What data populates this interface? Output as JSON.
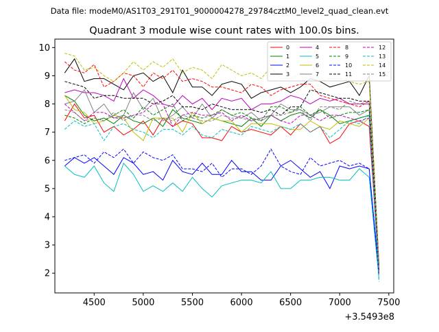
{
  "figure": {
    "suptitle": "Data file: modeM0/AS1T03_291T01_9000004278_29784cztM0_level2_quad_clean.evt"
  },
  "chart_data": {
    "type": "line",
    "title": "Quadrant 3 module wise count rates with 100.0s bins.",
    "xlabel": "",
    "ylabel": "",
    "x_offset_text": "+3.5493e8",
    "xlim": [
      4100,
      7550
    ],
    "ylim": [
      1.3,
      10.3
    ],
    "x_ticks": [
      4500,
      5000,
      5500,
      6000,
      6500,
      7000,
      7500
    ],
    "y_ticks": [
      2,
      3,
      4,
      5,
      6,
      7,
      8,
      9,
      10
    ],
    "grid": false,
    "legend_position": "top-right",
    "x": [
      4200,
      4300,
      4400,
      4500,
      4600,
      4700,
      4800,
      4900,
      5000,
      5100,
      5200,
      5300,
      5400,
      5500,
      5600,
      5700,
      5800,
      5900,
      6000,
      6100,
      6200,
      6300,
      6400,
      6500,
      6600,
      6700,
      6800,
      6900,
      7000,
      7100,
      7200,
      7300,
      7400
    ],
    "series": [
      {
        "name": "0",
        "color": "#ff0000",
        "dash": "solid",
        "values": [
          7.4,
          8.0,
          7.5,
          7.6,
          7.0,
          7.2,
          6.9,
          7.1,
          7.4,
          6.9,
          7.5,
          7.2,
          7.4,
          7.3,
          6.8,
          6.8,
          6.7,
          7.2,
          7.0,
          7.1,
          7.0,
          6.9,
          7.2,
          6.9,
          7.3,
          7.0,
          7.2,
          6.6,
          6.8,
          7.3,
          7.4,
          7.2,
          2.1
        ]
      },
      {
        "name": "1",
        "color": "#008000",
        "dash": "solid",
        "values": [
          8.3,
          8.1,
          7.6,
          7.4,
          7.5,
          7.3,
          7.6,
          7.4,
          7.3,
          7.5,
          7.2,
          7.8,
          7.5,
          7.4,
          7.3,
          7.5,
          7.4,
          7.3,
          7.2,
          7.5,
          7.2,
          7.6,
          7.4,
          7.6,
          7.7,
          7.5,
          7.8,
          7.6,
          7.3,
          7.4,
          7.5,
          7.6,
          2.1
        ]
      },
      {
        "name": "2",
        "color": "#0000ff",
        "dash": "solid",
        "values": [
          5.8,
          6.1,
          5.9,
          6.1,
          5.8,
          5.5,
          6.1,
          5.9,
          5.5,
          5.6,
          5.3,
          6.0,
          5.6,
          5.5,
          5.9,
          5.5,
          5.5,
          6.0,
          5.6,
          5.6,
          5.3,
          5.3,
          5.8,
          6.0,
          5.7,
          5.4,
          5.6,
          5.0,
          5.8,
          5.7,
          5.8,
          5.7,
          2.0
        ]
      },
      {
        "name": "3",
        "color": "#000000",
        "dash": "solid",
        "values": [
          9.1,
          9.6,
          8.8,
          8.9,
          8.9,
          8.7,
          8.5,
          9.0,
          9.1,
          8.8,
          9.0,
          8.4,
          9.2,
          8.6,
          8.6,
          8.3,
          8.7,
          8.8,
          8.7,
          8.2,
          8.4,
          8.5,
          8.6,
          8.4,
          8.6,
          8.9,
          8.8,
          8.6,
          8.7,
          8.8,
          8.3,
          9.0,
          2.3
        ]
      },
      {
        "name": "4",
        "color": "#bf00bf",
        "dash": "solid",
        "values": [
          8.4,
          8.5,
          8.4,
          8.4,
          8.3,
          8.1,
          8.9,
          8.2,
          8.5,
          8.3,
          8.0,
          7.9,
          8.3,
          8.0,
          8.2,
          7.8,
          8.2,
          8.1,
          8.2,
          7.8,
          8.0,
          8.0,
          8.1,
          8.3,
          8.2,
          8.0,
          8.2,
          8.1,
          8.2,
          8.0,
          8.0,
          8.0,
          2.2
        ]
      },
      {
        "name": "5",
        "color": "#00bfbf",
        "dash": "solid",
        "values": [
          5.8,
          5.5,
          5.4,
          5.8,
          5.2,
          4.9,
          5.9,
          5.5,
          4.9,
          5.1,
          4.9,
          5.2,
          4.9,
          5.4,
          5.0,
          4.7,
          5.1,
          5.2,
          5.3,
          5.3,
          5.2,
          5.6,
          5.0,
          5.0,
          5.3,
          5.3,
          5.4,
          5.4,
          5.3,
          5.3,
          5.7,
          5.4,
          1.8
        ]
      },
      {
        "name": "6",
        "color": "#bfbf00",
        "dash": "solid",
        "values": [
          8.3,
          7.8,
          7.7,
          7.3,
          7.4,
          7.6,
          7.5,
          7.0,
          6.7,
          7.5,
          7.5,
          7.5,
          7.0,
          7.7,
          7.3,
          7.5,
          7.4,
          7.4,
          7.0,
          7.3,
          7.3,
          7.3,
          7.2,
          7.1,
          7.1,
          7.4,
          7.2,
          7.1,
          7.4,
          7.3,
          7.2,
          7.5,
          2.2
        ]
      },
      {
        "name": "7",
        "color": "#808080",
        "dash": "solid",
        "values": [
          8.0,
          8.1,
          8.5,
          7.7,
          8.0,
          7.5,
          7.6,
          8.4,
          7.8,
          8.2,
          7.4,
          7.6,
          7.9,
          7.5,
          8.0,
          7.5,
          7.8,
          7.6,
          7.5,
          7.7,
          7.4,
          7.6,
          8.0,
          7.8,
          7.8,
          7.6,
          7.7,
          7.9,
          7.9,
          7.9,
          7.6,
          7.8,
          2.0
        ]
      },
      {
        "name": "8",
        "color": "#ff0000",
        "dash": "dashed",
        "values": [
          9.5,
          9.2,
          9.1,
          9.4,
          8.6,
          8.8,
          9.1,
          9.0,
          8.6,
          9.1,
          8.9,
          9.2,
          8.8,
          8.9,
          8.8,
          8.6,
          8.6,
          8.5,
          8.4,
          8.7,
          8.6,
          8.3,
          8.5,
          8.6,
          8.7,
          8.7,
          8.3,
          8.2,
          8.1,
          8.0,
          7.9,
          8.1,
          2.2
        ]
      },
      {
        "name": "9",
        "color": "#008000",
        "dash": "dashed",
        "values": [
          7.6,
          7.5,
          7.3,
          7.5,
          7.4,
          7.6,
          7.8,
          7.5,
          7.9,
          7.6,
          7.8,
          8.0,
          7.4,
          7.6,
          7.5,
          7.6,
          7.8,
          7.6,
          7.7,
          7.5,
          7.4,
          7.9,
          7.9,
          7.7,
          7.9,
          7.6,
          7.8,
          7.5,
          7.6,
          7.7,
          7.7,
          7.8,
          2.3
        ]
      },
      {
        "name": "10",
        "color": "#0000ff",
        "dash": "dashed",
        "values": [
          6.0,
          6.1,
          6.2,
          5.9,
          6.3,
          6.1,
          6.4,
          5.9,
          6.3,
          6.1,
          6.0,
          6.2,
          5.7,
          5.7,
          5.6,
          5.9,
          5.4,
          5.7,
          5.7,
          5.5,
          5.8,
          6.4,
          5.8,
          5.6,
          5.5,
          6.1,
          5.8,
          5.9,
          6.0,
          5.8,
          5.9,
          5.7,
          1.9
        ]
      },
      {
        "name": "11",
        "color": "#000000",
        "dash": "dashed",
        "values": [
          8.8,
          8.7,
          8.6,
          8.2,
          8.3,
          8.3,
          8.2,
          8.2,
          8.2,
          8.0,
          8.1,
          8.3,
          7.9,
          7.9,
          7.8,
          8.0,
          7.9,
          7.8,
          7.8,
          7.8,
          7.7,
          7.8,
          7.6,
          7.9,
          7.9,
          8.5,
          8.4,
          8.3,
          8.2,
          8.2,
          8.1,
          8.1,
          2.1
        ]
      },
      {
        "name": "12",
        "color": "#bf00bf",
        "dash": "dashed",
        "values": [
          8.0,
          7.7,
          7.4,
          7.7,
          7.7,
          7.5,
          7.5,
          7.6,
          7.7,
          8.0,
          8.0,
          7.2,
          7.6,
          7.7,
          7.6,
          7.6,
          7.7,
          7.4,
          7.6,
          7.4,
          7.5,
          7.6,
          7.4,
          7.3,
          7.6,
          7.6,
          7.4,
          7.6,
          7.6,
          7.5,
          7.4,
          7.5,
          2.0
        ]
      },
      {
        "name": "13",
        "color": "#00bfbf",
        "dash": "dashed",
        "values": [
          7.1,
          7.4,
          7.2,
          7.3,
          6.7,
          7.2,
          7.3,
          7.1,
          7.0,
          6.8,
          7.1,
          7.1,
          6.9,
          7.2,
          6.9,
          6.8,
          7.1,
          7.0,
          6.9,
          7.2,
          7.1,
          7.0,
          7.2,
          7.1,
          7.3,
          7.0,
          7.2,
          6.8,
          7.1,
          7.4,
          7.3,
          7.6,
          1.7
        ]
      },
      {
        "name": "14",
        "color": "#bfbf00",
        "dash": "dashed",
        "values": [
          9.8,
          9.7,
          9.2,
          9.3,
          9.0,
          8.8,
          9.1,
          9.5,
          9.2,
          9.5,
          9.3,
          9.6,
          9.1,
          9.3,
          9.2,
          8.9,
          9.4,
          9.2,
          9.0,
          9.1,
          8.9,
          9.3,
          8.9,
          8.9,
          9.1,
          9.0,
          8.8,
          8.9,
          8.9,
          8.8,
          8.7,
          8.8,
          2.4
        ]
      },
      {
        "name": "15",
        "color": "#808080",
        "dash": "dashed",
        "values": [
          7.8,
          7.7,
          7.4,
          7.5,
          7.4,
          7.7,
          7.4,
          7.6,
          7.6,
          7.4,
          7.5,
          7.4,
          7.6,
          7.5,
          7.4,
          7.4,
          7.6,
          7.5,
          7.5,
          7.4,
          7.5,
          7.6,
          7.6,
          7.7,
          7.8,
          7.4,
          7.9,
          7.9,
          7.8,
          8.1,
          8.0,
          8.1,
          2.2
        ]
      }
    ]
  }
}
